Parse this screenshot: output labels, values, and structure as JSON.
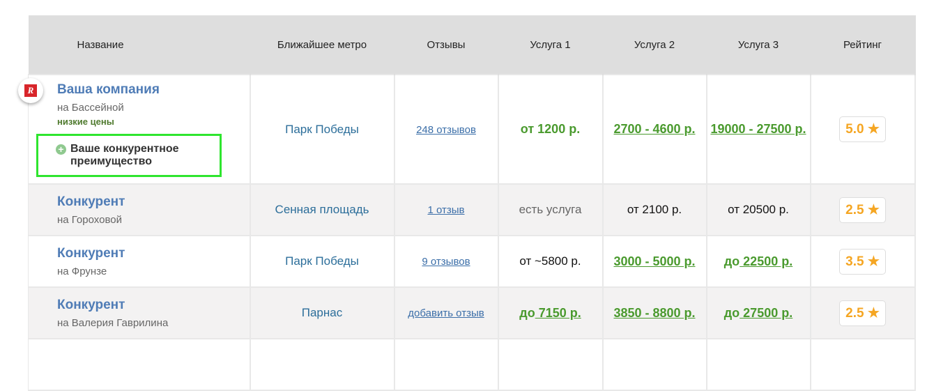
{
  "columns": [
    "Название",
    "Ближайшее метро",
    "Отзывы",
    "Услуга 1",
    "Услуга 2",
    "Услуга 3",
    "Рейтинг"
  ],
  "logo_text": "R",
  "rows": [
    {
      "name": "Ваша компания",
      "address": "на Бассейной",
      "tag": "низкие цены",
      "advantage": "Ваше конкурентное преимущество",
      "metro": "Парк Победы",
      "reviews": "248 отзывов",
      "s1": {
        "prefix": "",
        "text": "от 1200 р.",
        "style": "green-bold"
      },
      "s2": {
        "prefix": "",
        "text": "2700 - 4600 р.",
        "style": "green-link"
      },
      "s3": {
        "prefix": "",
        "text": "19000 - 27500 р.",
        "style": "green-link"
      },
      "rating": "5.0"
    },
    {
      "name": "Конкурент",
      "address": "на Гороховой",
      "metro": "Сенная площадь",
      "reviews": "1 отзыв",
      "s1": {
        "prefix": "",
        "text": "есть услуга",
        "style": "gray"
      },
      "s2": {
        "prefix": "",
        "text": "от 2100 р.",
        "style": "black"
      },
      "s3": {
        "prefix": "",
        "text": "от 20500 р.",
        "style": "black"
      },
      "rating": "2.5"
    },
    {
      "name": "Конкурент",
      "address": "на Фрунзе",
      "metro": "Парк Победы",
      "reviews": "9 отзывов",
      "s1": {
        "prefix": "",
        "text": "от ~5800 р.",
        "style": "black"
      },
      "s2": {
        "prefix": "",
        "text": "3000 - 5000 р.",
        "style": "green-link"
      },
      "s3": {
        "prefix": "до",
        "text": " 22500 р.",
        "style": "green-link"
      },
      "rating": "3.5"
    },
    {
      "name": "Конкурент",
      "address": "на Валерия Гаврилина",
      "metro": "Парнас",
      "reviews": "добавить отзыв",
      "s1": {
        "prefix": "до",
        "text": " 7150 р.",
        "style": "green-link"
      },
      "s2": {
        "prefix": "",
        "text": "3850 - 8800 р.",
        "style": "green-link"
      },
      "s3": {
        "prefix": "до",
        "text": " 27500 р.",
        "style": "green-link"
      },
      "rating": "2.5"
    }
  ],
  "colors": {
    "accent_green": "#4a9a2e",
    "link_blue": "#4f7cb6",
    "rating_orange": "#f5a623",
    "highlight": "#2ee52e"
  }
}
